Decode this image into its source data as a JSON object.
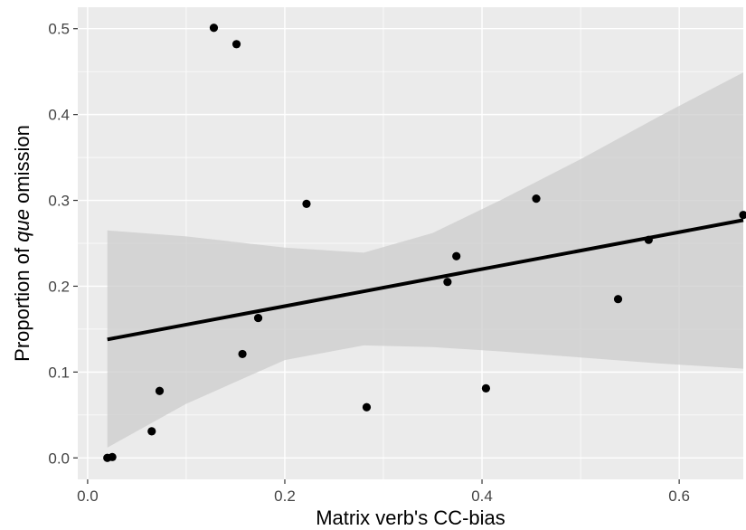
{
  "chart_data": {
    "type": "scatter",
    "xlabel": "Matrix verb's CC-bias",
    "ylabel_parts": [
      "Proportion of ",
      "que",
      " omission"
    ],
    "xlim": [
      -0.01,
      0.665
    ],
    "ylim": [
      -0.025,
      0.525
    ],
    "x_ticks": [
      0.0,
      0.2,
      0.4,
      0.6
    ],
    "x_tick_labels": [
      "0.0",
      "0.2",
      "0.4",
      "0.6"
    ],
    "y_ticks": [
      0.0,
      0.1,
      0.2,
      0.3,
      0.4,
      0.5
    ],
    "y_tick_labels": [
      "0.0",
      "0.1",
      "0.2",
      "0.3",
      "0.4",
      "0.5"
    ],
    "grid": true,
    "points": [
      {
        "x": 0.02,
        "y": 0.0
      },
      {
        "x": 0.025,
        "y": 0.001
      },
      {
        "x": 0.065,
        "y": 0.031
      },
      {
        "x": 0.073,
        "y": 0.078
      },
      {
        "x": 0.128,
        "y": 0.501
      },
      {
        "x": 0.151,
        "y": 0.482
      },
      {
        "x": 0.157,
        "y": 0.121
      },
      {
        "x": 0.173,
        "y": 0.163
      },
      {
        "x": 0.222,
        "y": 0.296
      },
      {
        "x": 0.283,
        "y": 0.059
      },
      {
        "x": 0.365,
        "y": 0.205
      },
      {
        "x": 0.374,
        "y": 0.235
      },
      {
        "x": 0.404,
        "y": 0.081
      },
      {
        "x": 0.455,
        "y": 0.302
      },
      {
        "x": 0.538,
        "y": 0.185
      },
      {
        "x": 0.569,
        "y": 0.254
      },
      {
        "x": 0.665,
        "y": 0.283
      }
    ],
    "fit_line": {
      "x": [
        0.02,
        0.665
      ],
      "y": [
        0.138,
        0.277
      ]
    },
    "confidence_band": {
      "x": [
        0.02,
        0.1,
        0.2,
        0.28,
        0.35,
        0.42,
        0.5,
        0.58,
        0.665
      ],
      "upper": [
        0.265,
        0.258,
        0.245,
        0.239,
        0.262,
        0.301,
        0.348,
        0.398,
        0.449
      ],
      "lower": [
        0.012,
        0.063,
        0.114,
        0.131,
        0.129,
        0.124,
        0.117,
        0.11,
        0.104
      ]
    },
    "colors": {
      "panel": "#ebebeb",
      "grid": "#ffffff",
      "band": "#cccccc",
      "line": "#000000",
      "point": "#000000",
      "axis_text": "#444444"
    }
  }
}
